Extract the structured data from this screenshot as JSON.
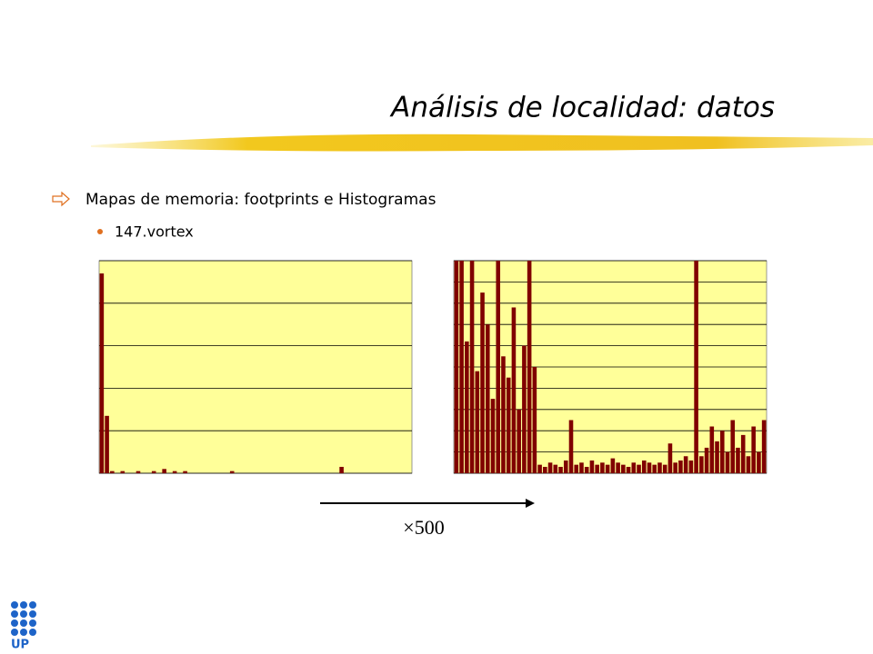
{
  "slide": {
    "title": "Análisis de localidad: datos",
    "bullet": "Mapas de memoria: footprints e Histogramas",
    "sub_bullet": "147.vortex",
    "arrow_label": "×500",
    "logo": "UP"
  },
  "chart_data": [
    {
      "type": "bar",
      "color": "#800000",
      "background": "#ffff99",
      "grid": true,
      "ylim": [
        0,
        100
      ],
      "yticks": [
        0,
        20,
        40,
        60,
        80,
        100
      ],
      "values": [
        94,
        27,
        1,
        0,
        1,
        0,
        0,
        1,
        0,
        0,
        1,
        0,
        2,
        0,
        1,
        0,
        1,
        0,
        0,
        0,
        0,
        0,
        0,
        0,
        0,
        1,
        0,
        0,
        0,
        0,
        0,
        0,
        0,
        0,
        0,
        0,
        0,
        0,
        0,
        0,
        0,
        0,
        0,
        0,
        0,
        0,
        3,
        0,
        0,
        0,
        0,
        0,
        0,
        0,
        0,
        0,
        0,
        0,
        0,
        0
      ]
    },
    {
      "type": "bar",
      "color": "#800000",
      "background": "#ffff99",
      "grid": true,
      "ylim": [
        0,
        100
      ],
      "yticks": [
        0,
        10,
        20,
        30,
        40,
        50,
        60,
        70,
        80,
        90,
        100
      ],
      "values": [
        100,
        100,
        62,
        100,
        48,
        85,
        70,
        35,
        100,
        55,
        45,
        78,
        30,
        60,
        100,
        50,
        4,
        3,
        5,
        4,
        3,
        6,
        25,
        4,
        5,
        3,
        6,
        4,
        5,
        4,
        7,
        5,
        4,
        3,
        5,
        4,
        6,
        5,
        4,
        5,
        4,
        14,
        5,
        6,
        8,
        6,
        100,
        8,
        12,
        22,
        15,
        20,
        10,
        25,
        12,
        18,
        8,
        22,
        10,
        25
      ]
    }
  ]
}
